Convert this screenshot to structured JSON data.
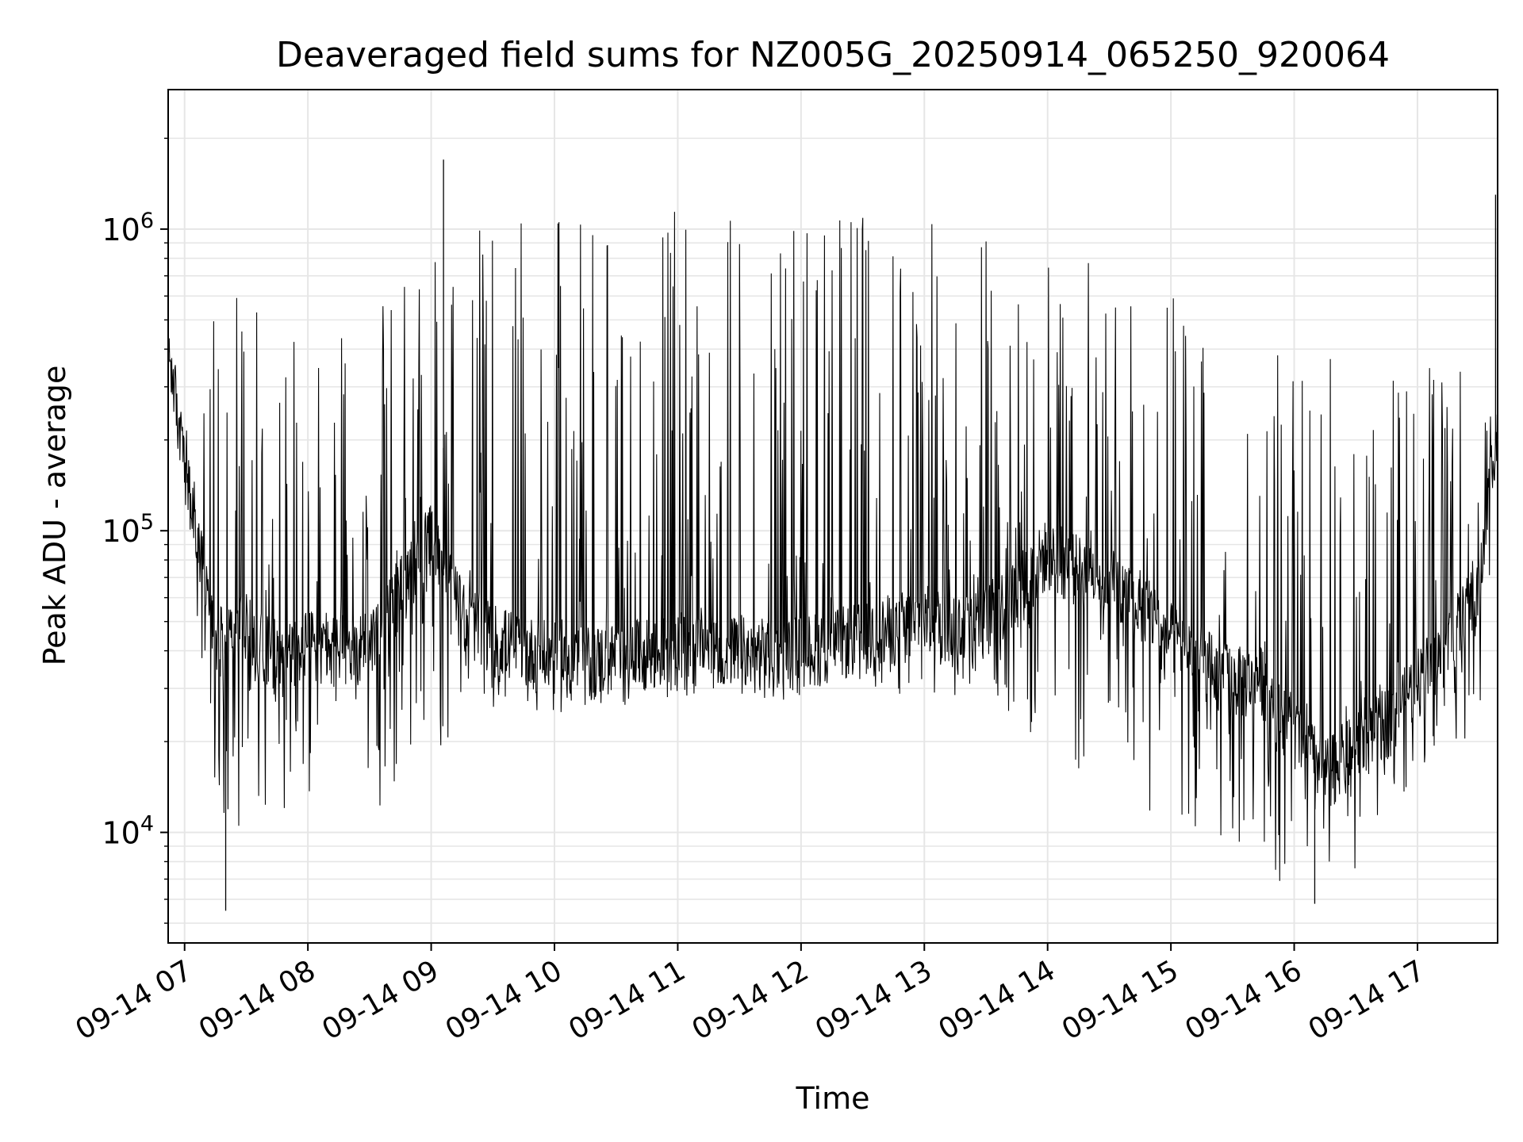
{
  "chart_data": {
    "type": "line",
    "title": "Deaveraged field sums for NZ005G_20250914_065250_920064",
    "xlabel": "Time",
    "ylabel": "Peak ADU - average",
    "yscale": "log",
    "ylim": [
      4300,
      2900000
    ],
    "xlim": [
      "2025-09-14 06:52",
      "2025-09-14 17:39"
    ],
    "grid": true,
    "legend": "none",
    "line_color": "#000000",
    "x_ticks": [
      "09-14 07",
      "09-14 08",
      "09-14 09",
      "09-14 10",
      "09-14 11",
      "09-14 12",
      "09-14 13",
      "09-14 14",
      "09-14 15",
      "09-14 16",
      "09-14 17"
    ],
    "y_ticks": [
      {
        "base": "10",
        "exp": "4",
        "value": 10000
      },
      {
        "base": "10",
        "exp": "5",
        "value": 100000
      },
      {
        "base": "10",
        "exp": "6",
        "value": 1000000
      }
    ],
    "envelope_note_free": true,
    "envelope": {
      "time": [
        "06:52",
        "07:00",
        "07:15",
        "07:30",
        "07:45",
        "08:00",
        "08:15",
        "08:30",
        "08:45",
        "09:00",
        "09:15",
        "09:30",
        "09:45",
        "10:00",
        "10:15",
        "10:30",
        "10:45",
        "11:00",
        "11:15",
        "11:30",
        "11:45",
        "12:00",
        "12:15",
        "12:30",
        "12:45",
        "13:00",
        "13:15",
        "13:30",
        "13:45",
        "14:00",
        "14:15",
        "14:30",
        "14:45",
        "15:00",
        "15:15",
        "15:30",
        "15:45",
        "16:00",
        "16:15",
        "16:30",
        "16:45",
        "17:00",
        "17:15",
        "17:30",
        "17:38"
      ],
      "base": [
        400000,
        150000,
        40000,
        45000,
        35000,
        40000,
        38000,
        40000,
        60000,
        90000,
        50000,
        42000,
        38000,
        36000,
        35000,
        36000,
        37000,
        38000,
        38000,
        38000,
        37000,
        38000,
        40000,
        42000,
        45000,
        48000,
        46000,
        48000,
        60000,
        80000,
        70000,
        65000,
        55000,
        42000,
        35000,
        30000,
        30000,
        20000,
        15000,
        18000,
        22000,
        30000,
        40000,
        60000,
        200000
      ],
      "peak": [
        480000,
        200000,
        700000,
        600000,
        500000,
        450000,
        550000,
        500000,
        700000,
        900000,
        1000000,
        1000000,
        1050000,
        1100000,
        1150000,
        1150000,
        1150000,
        1150000,
        1150000,
        1150000,
        1150000,
        1200000,
        1200000,
        1150000,
        1150000,
        1150000,
        1150000,
        1100000,
        1000000,
        950000,
        900000,
        800000,
        700000,
        650000,
        600000,
        550000,
        500000,
        450000,
        400000,
        350000,
        350000,
        350000,
        400000,
        450000,
        1300000
      ],
      "trough": [
        300000,
        120000,
        12000,
        10000,
        12000,
        12000,
        12000,
        11000,
        15000,
        16000,
        25000,
        25000,
        25000,
        25000,
        25000,
        26000,
        27000,
        28000,
        28000,
        28000,
        27000,
        28000,
        28000,
        28000,
        28000,
        28000,
        28000,
        28000,
        20000,
        15000,
        15000,
        14000,
        12000,
        10000,
        9000,
        9000,
        8000,
        6000,
        6000,
        7000,
        12000,
        15000,
        20000,
        20000,
        150000
      ]
    },
    "notable_points": [
      {
        "time": "09:06",
        "value": 1700000
      },
      {
        "time": "07:20",
        "value": 5500
      },
      {
        "time": "16:10",
        "value": 5800
      },
      {
        "time": "17:38",
        "value": 1300000
      }
    ]
  }
}
